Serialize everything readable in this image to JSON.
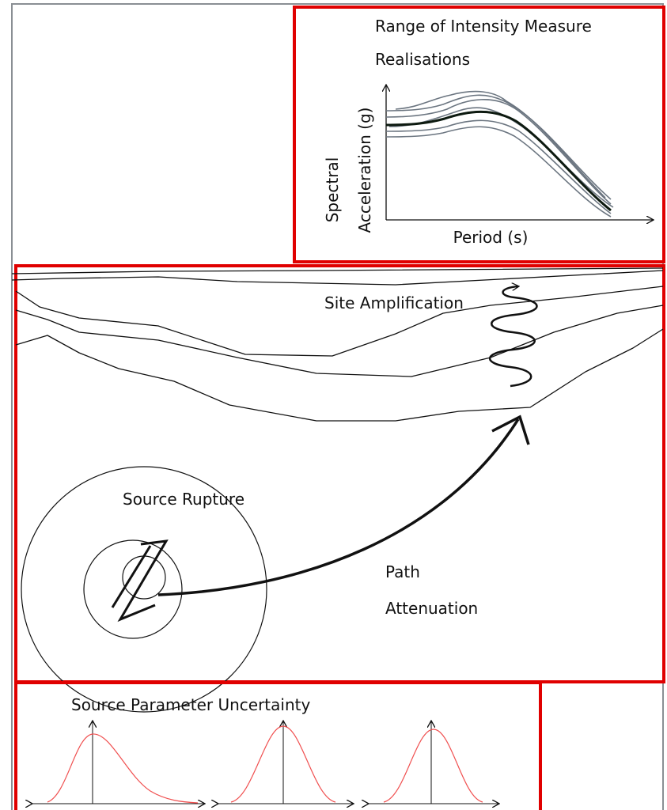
{
  "panels": {
    "intensity": {
      "title_line1": "Range of Intensity Measure",
      "title_line2": "Realisations",
      "y_label_line1": "Spectral",
      "y_label_line2": "Acceleration (g)",
      "x_label": "Period (s)"
    },
    "propagation": {
      "site": "Site Amplification",
      "source": "Source Rupture",
      "path_line1": "Path",
      "path_line2": "Attenuation"
    },
    "uncertainty": {
      "title": "Source Parameter Uncertainty"
    }
  }
}
